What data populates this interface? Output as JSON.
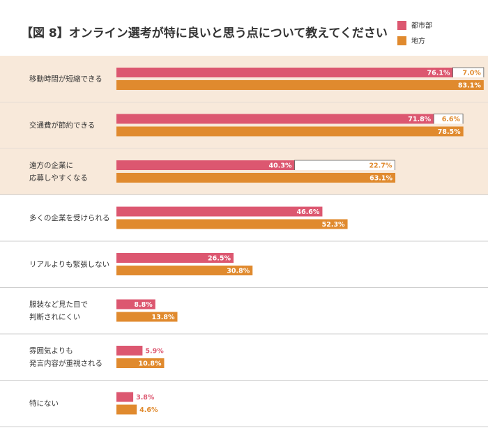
{
  "chart_data": {
    "type": "bar",
    "title": "【図 8】オンライン選考が特に良いと思う点について教えてください",
    "categories": [
      "移動時間が短縮できる",
      "交通費が節約できる",
      "遠方の企業に\n応募しやすくなる",
      "多くの企業を受けられる",
      "リアルよりも緊張しない",
      "服装など見た目で\n判断されにくい",
      "雰囲気よりも\n発言内容が重視される",
      "特にない"
    ],
    "series": [
      {
        "name": "都市部",
        "color": "#dc5770",
        "values": [
          76.1,
          71.8,
          40.3,
          46.6,
          26.5,
          8.8,
          5.9,
          3.8
        ],
        "value_labels": [
          "76.1%",
          "71.8%",
          "40.3%",
          "46.6%",
          "26.5%",
          "8.8%",
          "5.9%",
          "3.8%"
        ]
      },
      {
        "name": "地方",
        "color": "#e08a2e",
        "values": [
          83.1,
          78.5,
          63.1,
          52.3,
          30.8,
          13.8,
          10.8,
          4.6
        ],
        "value_labels": [
          "83.1%",
          "78.5%",
          "63.1%",
          "52.3%",
          "30.8%",
          "13.8%",
          "10.8%",
          "4.6%"
        ]
      }
    ],
    "gaps": {
      "values": [
        7.0,
        6.6,
        22.7
      ],
      "value_labels": [
        "7.0%",
        "6.6%",
        "22.7%"
      ]
    },
    "xlim": [
      0,
      100
    ]
  }
}
